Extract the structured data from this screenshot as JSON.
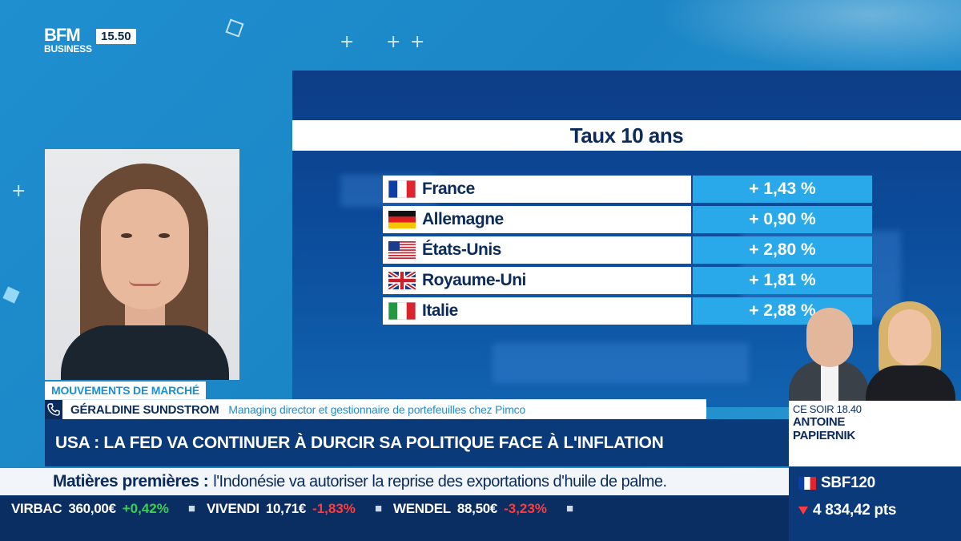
{
  "channel": {
    "logo_top": "BFM",
    "logo_bottom": "BUSINESS",
    "time": "15.50"
  },
  "panel": {
    "title": "Taux 10 ans",
    "rows": [
      {
        "country": "France",
        "value": "+ 1,43 %",
        "flag": "france-flag-icon"
      },
      {
        "country": "Allemagne",
        "value": "+ 0,90 %",
        "flag": "germany-flag-icon"
      },
      {
        "country": "États-Unis",
        "value": "+ 2,80 %",
        "flag": "usa-flag-icon"
      },
      {
        "country": "Royaume-Uni",
        "value": "+ 1,81 %",
        "flag": "uk-flag-icon"
      },
      {
        "country": "Italie",
        "value": "+ 2,88 %",
        "flag": "italy-flag-icon"
      }
    ]
  },
  "lower_third": {
    "segment": "MOUVEMENTS DE MARCHÉ",
    "guest_name": "GÉRALDINE SUNDSTROM",
    "guest_role": "Managing director et gestionnaire de portefeuilles chez Pimco",
    "headline": "USA : LA FED VA CONTINUER À DURCIR SA POLITIQUE FACE À L'INFLATION"
  },
  "host": {
    "time": "CE SOIR 18.40",
    "first_name": "ANTOINE",
    "last_name": "PAPIERNIK"
  },
  "news_ticker": {
    "label": "Matières premières :",
    "text": "l'Indonésie va autoriser la reprise des exportations d'huile de palme."
  },
  "stock_ticker": [
    {
      "name": "VIRBAC",
      "price": "360,00€",
      "change": "+0,42%",
      "direction": "up"
    },
    {
      "name": "VIVENDI",
      "price": "10,71€",
      "change": "-1,83%",
      "direction": "down"
    },
    {
      "name": "WENDEL",
      "price": "88,50€",
      "change": "-3,23%",
      "direction": "down"
    }
  ],
  "index": {
    "name": "SBF120",
    "value": "4 834,42 pts",
    "direction": "down"
  },
  "colors": {
    "background": "#1f8fcf",
    "navy": "#0b2b5c",
    "accent_blue": "#29a9ea",
    "up": "#39d14b",
    "down": "#ff3b3b"
  }
}
